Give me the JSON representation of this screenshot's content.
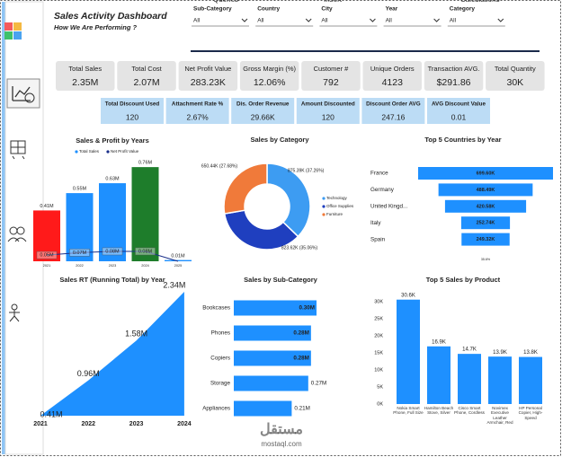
{
  "ribbon": [
    "Queries",
    "Insert",
    "Calculations"
  ],
  "header": {
    "title": "Sales Activity Dashboard",
    "subtitle": "How We Are Performing ?"
  },
  "filters": [
    {
      "label": "Sub-Category",
      "value": "All"
    },
    {
      "label": "Country",
      "value": "All"
    },
    {
      "label": "City",
      "value": "All"
    },
    {
      "label": "Year",
      "value": "All"
    },
    {
      "label": "Category",
      "value": "All"
    }
  ],
  "kpis": [
    {
      "label": "Total Sales",
      "value": "2.35M"
    },
    {
      "label": "Total Cost",
      "value": "2.07M"
    },
    {
      "label": "Net Profit Value",
      "value": "283.23K"
    },
    {
      "label": "Gross Margin (%)",
      "value": "12.06%"
    },
    {
      "label": "Customer #",
      "value": "792"
    },
    {
      "label": "Unique Orders",
      "value": "4123"
    },
    {
      "label": "Transaction AVG.",
      "value": "$291.86"
    },
    {
      "label": "Total Quantity",
      "value": "30K"
    }
  ],
  "discount_kpis": [
    {
      "label": "Total Discount Used",
      "value": "120"
    },
    {
      "label": "Attachment Rate %",
      "value": "2.67%"
    },
    {
      "label": "Dis. Order Revenue",
      "value": "29.66K"
    },
    {
      "label": "Amount Discounted",
      "value": "120"
    },
    {
      "label": "Discount Order AVG",
      "value": "247.16"
    },
    {
      "label": "AVG Discount Value",
      "value": "0.01"
    }
  ],
  "chart_data": [
    {
      "type": "combo",
      "title": "Sales & Profit by Years",
      "categories": [
        "2021",
        "2022",
        "2023",
        "2024",
        "2025"
      ],
      "series": [
        {
          "name": "Total Sales",
          "type": "bar",
          "color": "#1e90ff",
          "colors": [
            "#ff1a1a",
            "#1e90ff",
            "#1e90ff",
            "#1e7d2b",
            "#1e90ff"
          ],
          "values": [
            0.41,
            0.55,
            0.63,
            0.76,
            0.01
          ],
          "value_labels": [
            "0.41M",
            "0.55M",
            "0.63M",
            "0.76M",
            "0.01M"
          ]
        },
        {
          "name": "Net Profit Value",
          "type": "line",
          "color": "#1a2f8a",
          "values": [
            0.05,
            0.07,
            0.08,
            0.08,
            0
          ],
          "value_labels": [
            "0.05M",
            "0.07M",
            "0.08M",
            "0.08M",
            null
          ]
        }
      ]
    },
    {
      "type": "donut",
      "title": "Sales by Category",
      "categories": [
        "Technology",
        "Office Supplies",
        "Furniture"
      ],
      "values": [
        875.39,
        823.62,
        650.44
      ],
      "value_labels": [
        "875.39K (37.26%)",
        "823.62K (35.06%)",
        "650.44K (27.68%)"
      ],
      "colors": [
        "#3d9cf2",
        "#1f3fbf",
        "#f07a3a"
      ]
    },
    {
      "type": "funnel",
      "title": "Top 5 Countries by Year",
      "categories": [
        "France",
        "Germany",
        "United Kingd...",
        "Italy",
        "Spain"
      ],
      "values": [
        699.6,
        488.49,
        420.58,
        252.74,
        249.32
      ],
      "value_labels": [
        "699.60K",
        "488.49K",
        "420.58K",
        "252.74K",
        "249.32K"
      ],
      "color": "#1e90ff",
      "footnote": "35.6%"
    },
    {
      "type": "area",
      "title": "Sales RT (Running Total) by Year",
      "categories": [
        "2021",
        "2022",
        "2023",
        "2024"
      ],
      "values": [
        0.41,
        0.96,
        1.58,
        2.34
      ],
      "value_labels": [
        "0.41M",
        "0.96M",
        "1.58M",
        "2.34M"
      ],
      "color": "#1e90ff"
    },
    {
      "type": "hbar",
      "title": "Sales by Sub-Category",
      "categories": [
        "Bookcases",
        "Phones",
        "Copiers",
        "Storage",
        "Appliances"
      ],
      "values": [
        0.3,
        0.28,
        0.28,
        0.27,
        0.21
      ],
      "value_labels": [
        "0.30M",
        "0.28M",
        "0.28M",
        "0.27M",
        "0.21M"
      ],
      "color": "#1e90ff"
    },
    {
      "type": "bar",
      "title": "Top 5 Sales by Product",
      "categories": [
        "Nokia Smart Phone, Full Size",
        "Hamilton Beach Stove, Silver",
        "Cisco Smart Phone, Cordless",
        "Novimex Executive Leather Armchair, Red",
        "HP Personal Copier, High-Speed"
      ],
      "values": [
        30.6,
        16.9,
        14.7,
        13.9,
        13.8
      ],
      "value_labels": [
        "30.6K",
        "16.9K",
        "14.7K",
        "13.9K",
        "13.8K"
      ],
      "color": "#1e90ff",
      "ylim": [
        0,
        33
      ],
      "yticks": [
        {
          "value": 0,
          "label": "0K"
        },
        {
          "value": 5,
          "label": "5K"
        },
        {
          "value": 10,
          "label": "10K"
        },
        {
          "value": 15,
          "label": "15K"
        },
        {
          "value": 20,
          "label": "20K"
        },
        {
          "value": 25,
          "label": "25K"
        },
        {
          "value": 30,
          "label": "30K"
        }
      ]
    }
  ],
  "watermark": {
    "arabic": "مستقل",
    "latin": "mostaql.com"
  }
}
